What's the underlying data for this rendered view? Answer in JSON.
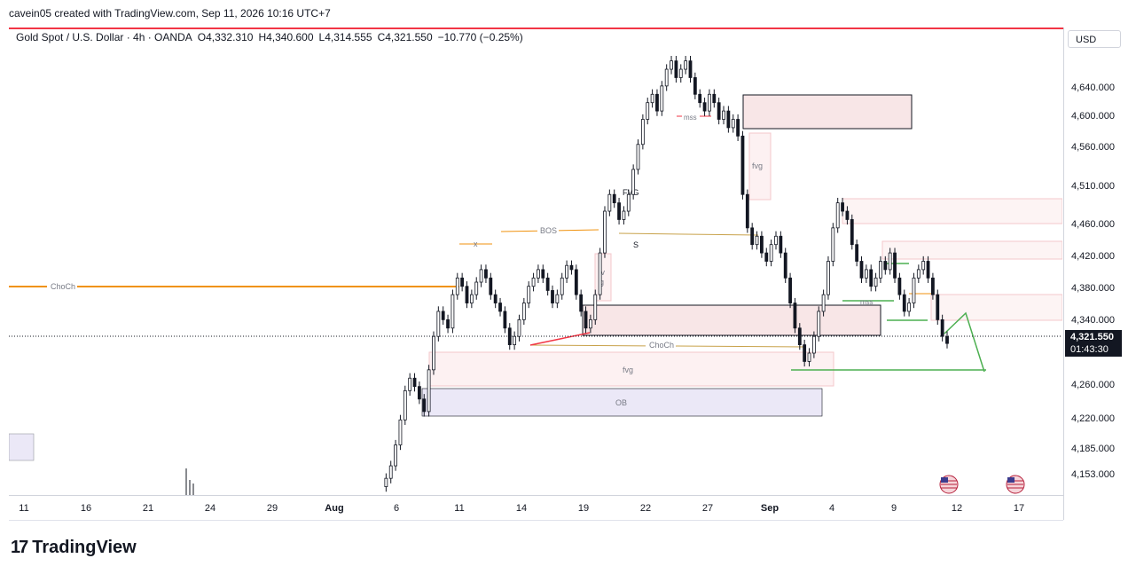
{
  "header": {
    "attribution": "cavein05 created with TradingView.com, Sep 11, 2026 10:16 UTC+7"
  },
  "legend": {
    "symbol": "Gold Spot / U.S. Dollar · 4h · OANDA",
    "open": "O4,332.310",
    "high": "H4,340.600",
    "low": "L4,314.555",
    "close": "C4,321.550",
    "change": "−10.770 (−0.25%)"
  },
  "currency": "USD",
  "last_price": {
    "value": "4,321.550",
    "countdown": "01:43:30"
  },
  "branding": {
    "logo_mark": "17",
    "logo_text": "TradingView"
  },
  "colors": {
    "up": "#131722",
    "down": "#131722",
    "accent_red": "#f23645",
    "choch_orange": "#f0920e",
    "zone_pink": "#f8e6e7",
    "zone_purple": "#ebe8f7",
    "green": "#4caf50"
  },
  "chart_data": {
    "type": "candlestick",
    "title": "Gold Spot / U.S. Dollar · 4h · OANDA",
    "ylim": [
      4140,
      4700
    ],
    "y_ticks": [
      "4,640.000",
      "4,600.000",
      "4,560.000",
      "4,510.000",
      "4,460.000",
      "4,420.000",
      "4,380.000",
      "4,340.000",
      "4,260.000",
      "4,220.000",
      "4,185.000",
      "4,153.000"
    ],
    "x_ticks": [
      "11",
      "16",
      "21",
      "24",
      "29",
      "Aug",
      "6",
      "11",
      "14",
      "19",
      "22",
      "27",
      "Sep",
      "4",
      "9",
      "12",
      "17"
    ],
    "x_ticks_bold": [
      "Aug",
      "Sep"
    ],
    "last_price": 4321.55,
    "close_series": [
      4150,
      4160,
      4175,
      4200,
      4230,
      4265,
      4280,
      4270,
      4255,
      4240,
      4290,
      4330,
      4360,
      4350,
      4340,
      4380,
      4400,
      4390,
      4370,
      4380,
      4395,
      4410,
      4400,
      4380,
      4370,
      4360,
      4340,
      4320,
      4330,
      4350,
      4370,
      4390,
      4400,
      4410,
      4400,
      4385,
      4370,
      4380,
      4400,
      4415,
      4410,
      4380,
      4360,
      4340,
      4350,
      4380,
      4430,
      4480,
      4500,
      4490,
      4470,
      4480,
      4500,
      4530,
      4560,
      4590,
      4610,
      4620,
      4600,
      4630,
      4650,
      4660,
      4640,
      4650,
      4660,
      4640,
      4620,
      4610,
      4600,
      4620,
      4610,
      4590,
      4600,
      4580,
      4590,
      4570,
      4500,
      4460,
      4440,
      4450,
      4430,
      4420,
      4440,
      4450,
      4430,
      4400,
      4370,
      4340,
      4320,
      4300,
      4310,
      4330,
      4360,
      4380,
      4420,
      4460,
      4490,
      4480,
      4470,
      4440,
      4420,
      4400,
      4410,
      4390,
      4400,
      4420,
      4410,
      4430,
      4400,
      4380,
      4360,
      4370,
      4400,
      4410,
      4420,
      4400,
      4380,
      4350,
      4330,
      4321.55
    ],
    "annotations": [
      "ChoCh",
      "x",
      "BOS",
      "S",
      "FVG",
      "fvg",
      "fv g",
      "mss",
      "ChoCh",
      "fvg",
      "OB",
      "mss"
    ]
  }
}
